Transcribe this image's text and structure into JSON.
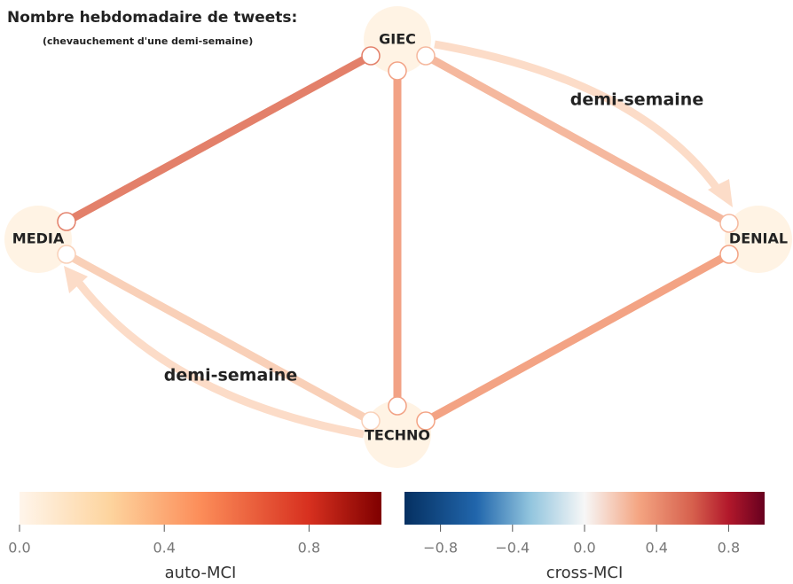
{
  "title": "Nombre hebdomadaire de tweets:",
  "subtitle": "(chevauchement d'une demi-semaine)",
  "nodes": [
    {
      "label": "GIEC"
    },
    {
      "label": "MEDIA"
    },
    {
      "label": "DENIAL"
    },
    {
      "label": "TECHNO"
    }
  ],
  "edge_labels": [
    "demi-semaine",
    "demi-semaine"
  ],
  "colorbars": [
    {
      "label": "auto-MCI",
      "lim": [
        0,
        1
      ],
      "ticks": [
        {
          "value": 0,
          "label": "0.0"
        },
        {
          "value": 0.4,
          "label": "0.4"
        },
        {
          "value": 0.8,
          "label": "0.8"
        }
      ]
    },
    {
      "label": "cross-MCI",
      "lim": [
        -1,
        1
      ],
      "ticks": [
        {
          "value": -0.8,
          "label": "−0.8"
        },
        {
          "value": -0.4,
          "label": "−0.4"
        },
        {
          "value": 0,
          "label": "0.0"
        },
        {
          "value": 0.4,
          "label": "0.4"
        },
        {
          "value": 0.8,
          "label": "0.8"
        }
      ]
    }
  ]
}
